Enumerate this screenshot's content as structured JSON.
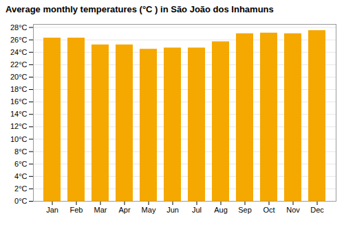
{
  "chart_data": {
    "type": "bar",
    "title": "Average monthly temperatures (°C ) in São João dos Inhamuns",
    "categories": [
      "Jan",
      "Feb",
      "Mar",
      "Apr",
      "May",
      "Jun",
      "Jul",
      "Aug",
      "Sep",
      "Oct",
      "Nov",
      "Dec"
    ],
    "values": [
      26.3,
      26.3,
      25.2,
      25.2,
      24.5,
      24.7,
      24.7,
      25.7,
      27.0,
      27.1,
      27.0,
      27.5
    ],
    "color": "#F5A800",
    "ylim": [
      0,
      28.5
    ],
    "yticks": [
      {
        "value": 0,
        "label": "0°C"
      },
      {
        "value": 2,
        "label": "2°C"
      },
      {
        "value": 4,
        "label": "4°C"
      },
      {
        "value": 6,
        "label": "6°C"
      },
      {
        "value": 8,
        "label": "8°C"
      },
      {
        "value": 10,
        "label": "10°C"
      },
      {
        "value": 12,
        "label": "12°C"
      },
      {
        "value": 14,
        "label": "14°C"
      },
      {
        "value": 16,
        "label": "16°C"
      },
      {
        "value": 18,
        "label": "18°C"
      },
      {
        "value": 20,
        "label": "20°C"
      },
      {
        "value": 22,
        "label": "22°C"
      },
      {
        "value": 24,
        "label": "24°C"
      },
      {
        "value": 26,
        "label": "26°C"
      },
      {
        "value": 28,
        "label": "28°C"
      }
    ],
    "grid": true
  }
}
